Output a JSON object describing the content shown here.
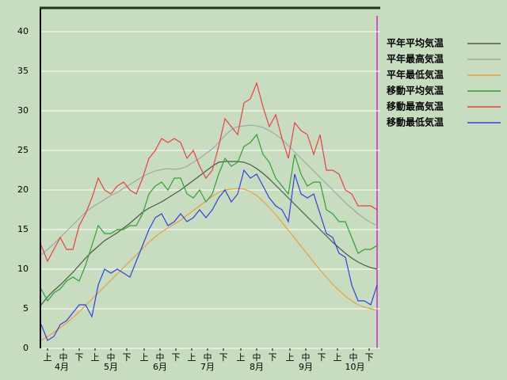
{
  "chart_data": {
    "type": "line",
    "x": [
      0,
      4,
      8,
      12,
      16,
      20,
      24,
      28,
      32,
      36,
      40,
      44,
      48,
      52,
      56,
      60,
      64,
      68,
      72,
      76,
      80,
      84,
      88,
      92,
      96,
      100,
      104,
      108,
      112,
      116,
      120,
      124,
      128,
      132,
      136,
      140,
      144,
      148,
      152,
      156,
      160,
      164,
      168,
      172,
      176,
      180,
      184,
      188,
      192,
      196,
      200,
      204,
      208,
      212
    ],
    "xlim": [
      0,
      214
    ],
    "xticks": [
      {
        "value": 4,
        "label": "上"
      },
      {
        "value": 14,
        "label": "中"
      },
      {
        "value": 24,
        "label": "下"
      },
      {
        "value": 34,
        "label": "上"
      },
      {
        "value": 44,
        "label": "中"
      },
      {
        "value": 54,
        "label": "下"
      },
      {
        "value": 65,
        "label": "上"
      },
      {
        "value": 75,
        "label": "中"
      },
      {
        "value": 85,
        "label": "下"
      },
      {
        "value": 95,
        "label": "上"
      },
      {
        "value": 105,
        "label": "中"
      },
      {
        "value": 115,
        "label": "下"
      },
      {
        "value": 126,
        "label": "上"
      },
      {
        "value": 136,
        "label": "中"
      },
      {
        "value": 146,
        "label": "下"
      },
      {
        "value": 157,
        "label": "上"
      },
      {
        "value": 167,
        "label": "中"
      },
      {
        "value": 177,
        "label": "下"
      },
      {
        "value": 187,
        "label": "上"
      },
      {
        "value": 197,
        "label": "中"
      },
      {
        "value": 207,
        "label": "下"
      }
    ],
    "month_labels": [
      {
        "value": 13,
        "label": "4月"
      },
      {
        "value": 44,
        "label": "5月"
      },
      {
        "value": 75,
        "label": "6月"
      },
      {
        "value": 105,
        "label": "7月"
      },
      {
        "value": 136,
        "label": "8月"
      },
      {
        "value": 167,
        "label": "9月"
      },
      {
        "value": 198,
        "label": "10月"
      }
    ],
    "ylim": [
      0,
      43
    ],
    "yticks": [
      0,
      5,
      10,
      15,
      20,
      25,
      30,
      35,
      40
    ],
    "grid": true,
    "legend": "upper right",
    "series": [
      {
        "name": "平年平均気温",
        "color": "#4a5a48",
        "values": [
          5.5,
          6.5,
          7.3,
          8.0,
          8.8,
          9.6,
          10.5,
          11.4,
          12.2,
          12.9,
          13.6,
          14.1,
          14.6,
          15.2,
          15.8,
          16.5,
          17.2,
          17.7,
          18.1,
          18.5,
          19.0,
          19.5,
          20.0,
          20.6,
          21.2,
          21.8,
          22.4,
          23.0,
          23.5,
          23.6,
          23.6,
          23.6,
          23.5,
          23.2,
          22.7,
          22.1,
          21.4,
          20.6,
          19.8,
          19.0,
          18.2,
          17.4,
          16.6,
          15.8,
          15.0,
          14.2,
          13.4,
          12.7,
          12.0,
          11.4,
          10.9,
          10.5,
          10.2,
          10.0
        ]
      },
      {
        "name": "平年最高気温",
        "color": "#a0aaa0",
        "values": [
          11.8,
          12.5,
          13.2,
          14.0,
          14.8,
          15.6,
          16.4,
          17.2,
          17.8,
          18.3,
          18.8,
          19.3,
          19.7,
          20.2,
          20.7,
          21.2,
          21.7,
          22.1,
          22.4,
          22.6,
          22.7,
          22.6,
          22.7,
          23.0,
          23.5,
          24.0,
          24.6,
          25.2,
          26.0,
          26.9,
          27.6,
          28.0,
          28.1,
          28.2,
          28.1,
          27.9,
          27.5,
          27.0,
          26.4,
          25.6,
          24.8,
          24.0,
          23.2,
          22.4,
          21.6,
          20.8,
          20.0,
          19.2,
          18.4,
          17.7,
          17.0,
          16.4,
          15.9,
          15.5
        ]
      },
      {
        "name": "平年最低気温",
        "color": "#e8a040",
        "values": [
          1.0,
          1.5,
          2.0,
          2.6,
          3.2,
          3.9,
          4.6,
          5.4,
          6.2,
          7.0,
          7.8,
          8.6,
          9.4,
          10.2,
          11.0,
          11.8,
          12.6,
          13.4,
          14.1,
          14.7,
          15.2,
          15.7,
          16.2,
          16.8,
          17.4,
          18.0,
          18.6,
          19.2,
          19.7,
          20.0,
          20.1,
          20.2,
          20.1,
          19.8,
          19.3,
          18.6,
          17.8,
          16.9,
          15.9,
          14.9,
          13.9,
          12.9,
          11.9,
          10.9,
          9.9,
          9.0,
          8.1,
          7.3,
          6.6,
          6.0,
          5.5,
          5.2,
          5.0,
          4.8
        ]
      },
      {
        "name": "移動平均気温",
        "color": "#30a030",
        "values": [
          7.5,
          6,
          7,
          7.5,
          8.5,
          9,
          8.5,
          10.5,
          13,
          15.5,
          14.5,
          14.5,
          15,
          15,
          15.5,
          15.5,
          17,
          19.5,
          20.5,
          21,
          20,
          21.5,
          21.5,
          19.5,
          19,
          20,
          18.5,
          19.5,
          22,
          24,
          23,
          23.5,
          25.5,
          26,
          27,
          24.5,
          23.5,
          21.5,
          20.5,
          19.5,
          24.5,
          22,
          20.5,
          21,
          21,
          17.5,
          17,
          16,
          16,
          14,
          12,
          12.5,
          12.5,
          13
        ]
      },
      {
        "name": "移動最高気温",
        "color": "#e84040",
        "values": [
          13,
          11,
          12.5,
          14,
          12.5,
          12.5,
          15.5,
          17,
          19,
          21.5,
          20,
          19.5,
          20.5,
          21,
          20,
          19.5,
          21.5,
          24,
          25,
          26.5,
          26,
          26.5,
          26,
          24,
          25,
          23,
          21.5,
          22.5,
          25.5,
          29,
          28,
          27,
          31,
          31.5,
          33.5,
          30.5,
          28,
          29.5,
          26.5,
          24,
          28.5,
          27.5,
          27,
          24.5,
          27,
          22.5,
          22.5,
          22,
          20,
          19.5,
          18,
          18,
          18,
          17.5
        ]
      },
      {
        "name": "移動最低気温",
        "color": "#3040e0",
        "values": [
          3,
          1,
          1.5,
          3,
          3.5,
          4.5,
          5.5,
          5.5,
          4,
          8,
          10,
          9.5,
          10,
          9.5,
          9,
          11,
          13,
          15,
          16.5,
          17,
          15.5,
          16,
          17,
          16,
          16.5,
          17.5,
          16.5,
          17.5,
          19,
          20,
          18.5,
          19.5,
          22.5,
          21.5,
          22,
          20.5,
          19,
          18,
          17.5,
          16,
          22,
          19.5,
          19,
          19.5,
          17,
          14.5,
          14,
          12,
          11.5,
          8,
          6,
          6,
          5.5,
          8
        ]
      }
    ]
  }
}
